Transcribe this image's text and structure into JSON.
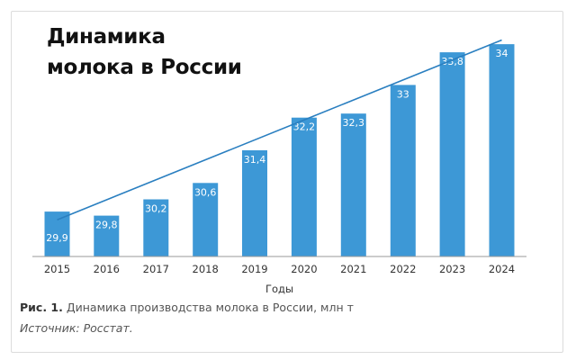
{
  "colors": {
    "bar": "#3d98d6",
    "trend": "#2a7fc0",
    "axis": "#999999"
  },
  "caption": {
    "label": "Рис. 1.",
    "text": " Динамика производства молока в России, млн т"
  },
  "source": "Источник: Росстат.",
  "chart_data": {
    "type": "bar",
    "title_lines": [
      "Динамика",
      "молока в России"
    ],
    "categories": [
      "2015",
      "2016",
      "2017",
      "2018",
      "2019",
      "2020",
      "2021",
      "2022",
      "2023",
      "2024"
    ],
    "values": [
      29.9,
      29.8,
      30.2,
      30.6,
      31.4,
      32.2,
      32.3,
      33,
      33.8,
      34
    ],
    "data_labels": [
      "29,9",
      "29,8",
      "30,2",
      "30,6",
      "31,4",
      "32,2",
      "32,3",
      "33",
      "33,8",
      "34"
    ],
    "xlabel": "Годы",
    "ylabel": "",
    "ylim": [
      28.8,
      34.2
    ],
    "trendline": {
      "start": 29.7,
      "end": 34.1
    },
    "grid": false,
    "legend": "none"
  }
}
